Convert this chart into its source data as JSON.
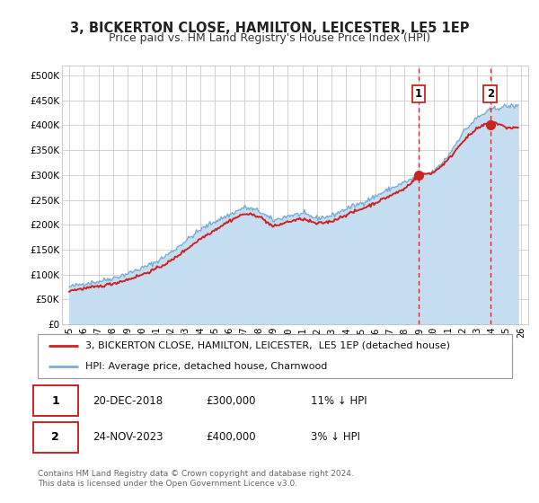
{
  "title": "3, BICKERTON CLOSE, HAMILTON, LEICESTER, LE5 1EP",
  "subtitle": "Price paid vs. HM Land Registry's House Price Index (HPI)",
  "ylim": [
    0,
    520000
  ],
  "xlim": [
    1994.5,
    2026.5
  ],
  "yticks": [
    0,
    50000,
    100000,
    150000,
    200000,
    250000,
    300000,
    350000,
    400000,
    450000,
    500000
  ],
  "ytick_labels": [
    "£0",
    "£50K",
    "£100K",
    "£150K",
    "£200K",
    "£250K",
    "£300K",
    "£350K",
    "£400K",
    "£450K",
    "£500K"
  ],
  "xticks": [
    1995,
    1996,
    1997,
    1998,
    1999,
    2000,
    2001,
    2002,
    2003,
    2004,
    2005,
    2006,
    2007,
    2008,
    2009,
    2010,
    2011,
    2012,
    2013,
    2014,
    2015,
    2016,
    2017,
    2018,
    2019,
    2020,
    2021,
    2022,
    2023,
    2024,
    2025,
    2026
  ],
  "xtick_labels": [
    "95",
    "96",
    "97",
    "98",
    "99",
    "00",
    "01",
    "02",
    "03",
    "04",
    "05",
    "06",
    "07",
    "08",
    "09",
    "10",
    "11",
    "12",
    "13",
    "14",
    "15",
    "16",
    "17",
    "18",
    "19",
    "20",
    "21",
    "22",
    "23",
    "24",
    "25",
    "26"
  ],
  "fig_bg_color": "#ffffff",
  "plot_bg_color": "#ffffff",
  "grid_color": "#cccccc",
  "hpi_color": "#7dadd4",
  "hpi_fill_color": "#c5ddf0",
  "price_color": "#cc2222",
  "sale1_x": 2018.97,
  "sale1_y": 300000,
  "sale2_x": 2023.9,
  "sale2_y": 400000,
  "legend_line1": "3, BICKERTON CLOSE, HAMILTON, LEICESTER,  LE5 1EP (detached house)",
  "legend_line2": "HPI: Average price, detached house, Charnwood",
  "table_row1": [
    "1",
    "20-DEC-2018",
    "£300,000",
    "11% ↓ HPI"
  ],
  "table_row2": [
    "2",
    "24-NOV-2023",
    "£400,000",
    "3% ↓ HPI"
  ],
  "footer1": "Contains HM Land Registry data © Crown copyright and database right 2024.",
  "footer2": "This data is licensed under the Open Government Licence v3.0.",
  "title_fontsize": 10.5,
  "subtitle_fontsize": 9,
  "tick_fontsize": 7.5,
  "legend_fontsize": 8,
  "table_fontsize": 8.5,
  "footer_fontsize": 6.5
}
